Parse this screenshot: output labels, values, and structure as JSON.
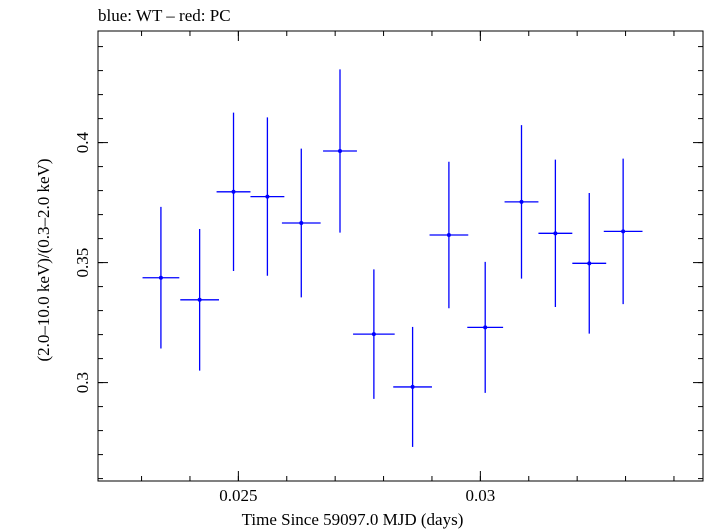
{
  "chart_data": {
    "type": "scatter",
    "title": "blue: WT – red: PC",
    "xlabel": "Time Since 59097.0 MJD (days)",
    "ylabel": "(2.0–10.0 keV)/(0.3–2.0 keV)",
    "xlim": [
      0.0221,
      0.0346
    ],
    "ylim": [
      0.259,
      0.4465
    ],
    "x_ticks": [
      {
        "value": 0.025,
        "label": "0.025"
      },
      {
        "value": 0.03,
        "label": "0.03"
      }
    ],
    "y_ticks": [
      {
        "value": 0.3,
        "label": "0.3"
      },
      {
        "value": 0.35,
        "label": "0.35"
      },
      {
        "value": 0.4,
        "label": "0.4"
      }
    ],
    "x_minor_step": 0.001,
    "y_minor_step": 0.01,
    "grid": false,
    "series": [
      {
        "color": "#0000ff",
        "points": [
          {
            "x": 0.0234,
            "xerr": 0.00038,
            "y": 0.3437,
            "yerr": 0.0295
          },
          {
            "x": 0.0242,
            "xerr": 0.0004,
            "y": 0.3345,
            "yerr": 0.0295
          },
          {
            "x": 0.0249,
            "xerr": 0.00035,
            "y": 0.3795,
            "yerr": 0.033
          },
          {
            "x": 0.0256,
            "xerr": 0.00035,
            "y": 0.3775,
            "yerr": 0.033
          },
          {
            "x": 0.0263,
            "xerr": 0.0004,
            "y": 0.3665,
            "yerr": 0.031
          },
          {
            "x": 0.0271,
            "xerr": 0.00035,
            "y": 0.3965,
            "yerr": 0.034
          },
          {
            "x": 0.0278,
            "xerr": 0.00043,
            "y": 0.3202,
            "yerr": 0.027
          },
          {
            "x": 0.0286,
            "xerr": 0.0004,
            "y": 0.2982,
            "yerr": 0.025
          },
          {
            "x": 0.02935,
            "xerr": 0.0004,
            "y": 0.3615,
            "yerr": 0.0305
          },
          {
            "x": 0.0301,
            "xerr": 0.00037,
            "y": 0.323,
            "yerr": 0.0273
          },
          {
            "x": 0.03085,
            "xerr": 0.00035,
            "y": 0.3753,
            "yerr": 0.032
          },
          {
            "x": 0.03155,
            "xerr": 0.00035,
            "y": 0.3622,
            "yerr": 0.0307
          },
          {
            "x": 0.03225,
            "xerr": 0.00035,
            "y": 0.3497,
            "yerr": 0.0293
          },
          {
            "x": 0.03295,
            "xerr": 0.0004,
            "y": 0.363,
            "yerr": 0.0303
          }
        ]
      }
    ]
  }
}
